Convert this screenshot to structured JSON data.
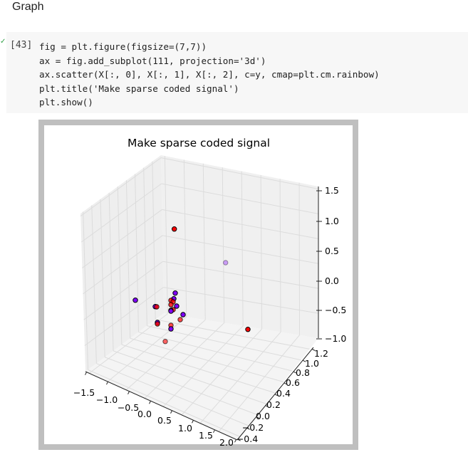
{
  "section_heading": "Graph",
  "cell": {
    "execution_count": "[43]",
    "status_icon": "check-icon",
    "code_lines": [
      "fig = plt.figure(figsize=(7,7))",
      "ax = fig.add_subplot(111, projection='3d')",
      "ax.scatter(X[:, 0], X[:, 1], X[:, 2], c=y, cmap=plt.cm.rainbow)",
      "plt.title('Make sparse coded signal')",
      "plt.show()"
    ]
  },
  "chart_data": {
    "type": "scatter",
    "projection": "3d",
    "title": "Make sparse coded signal",
    "colormap": "rainbow",
    "x_ticks": [
      "−1.5",
      "−1.0",
      "−0.5",
      "0.0",
      "0.5",
      "1.0",
      "1.5",
      "2.0"
    ],
    "y_ticks": [
      "−0.4",
      "−0.2",
      "0.0",
      "0.2",
      "0.4",
      "0.6",
      "0.8",
      "1.0",
      "1.2"
    ],
    "z_ticks": [
      "1.5",
      "1.0",
      "0.5",
      "0.0",
      "−0.5",
      "−1.0"
    ],
    "xlim": [
      -1.5,
      2.0
    ],
    "ylim": [
      -0.4,
      1.2
    ],
    "zlim": [
      -1.0,
      1.5
    ],
    "grid": true,
    "colors": {
      "red": "#ff0000",
      "purple": "#8000ff",
      "pane": "#f2f2f2",
      "frame": "#bfbfbf"
    }
  }
}
